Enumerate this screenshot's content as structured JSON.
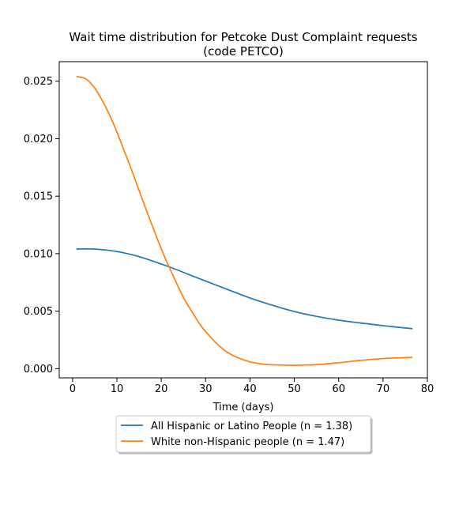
{
  "chart_data": {
    "type": "line",
    "title": "Wait time distribution  for Petcoke Dust Complaint  requests\n(code PETCO)",
    "xlabel": "Time (days)",
    "ylabel": "",
    "xlim": [
      -3,
      80
    ],
    "ylim": [
      -0.0008,
      0.0267
    ],
    "xticks": [
      0,
      10,
      20,
      30,
      40,
      50,
      60,
      70,
      80
    ],
    "yticks": [
      0.0,
      0.005,
      0.01,
      0.015,
      0.02,
      0.025
    ],
    "ytick_labels": [
      "0.000",
      "0.005",
      "0.010",
      "0.015",
      "0.020",
      "0.025"
    ],
    "grid": false,
    "legend_position": "below-center",
    "series": [
      {
        "name": "All Hispanic or Latino People (n = 1.38)",
        "color": "#1f77b4",
        "x": [
          1,
          3,
          5,
          8,
          11,
          14,
          17,
          20,
          23,
          26,
          30,
          35,
          40,
          45,
          50,
          55,
          60,
          65,
          70,
          76.5
        ],
        "y": [
          0.0104,
          0.01042,
          0.0104,
          0.0103,
          0.01012,
          0.00985,
          0.0095,
          0.0091,
          0.00868,
          0.00822,
          0.00762,
          0.00688,
          0.00615,
          0.00552,
          0.00497,
          0.00455,
          0.00422,
          0.00397,
          0.00374,
          0.00348
        ]
      },
      {
        "name": "White non-Hispanic people (n = 1.47)",
        "color": "#ff7f0e",
        "x": [
          1,
          3,
          5,
          7,
          9,
          11,
          13,
          15,
          17,
          19,
          21,
          23,
          25,
          27,
          29,
          31,
          33,
          35,
          37,
          40,
          43,
          46,
          50,
          55,
          60,
          65,
          70,
          76.5
        ],
        "y": [
          0.0254,
          0.0252,
          0.0244,
          0.0231,
          0.0215,
          0.0196,
          0.0176,
          0.0155,
          0.0134,
          0.0114,
          0.0095,
          0.0078,
          0.0062,
          0.0049,
          0.0037,
          0.0028,
          0.002,
          0.0014,
          0.001,
          0.0006,
          0.0004,
          0.00032,
          0.0003,
          0.00035,
          0.00052,
          0.00072,
          0.00088,
          0.00098
        ]
      }
    ]
  }
}
